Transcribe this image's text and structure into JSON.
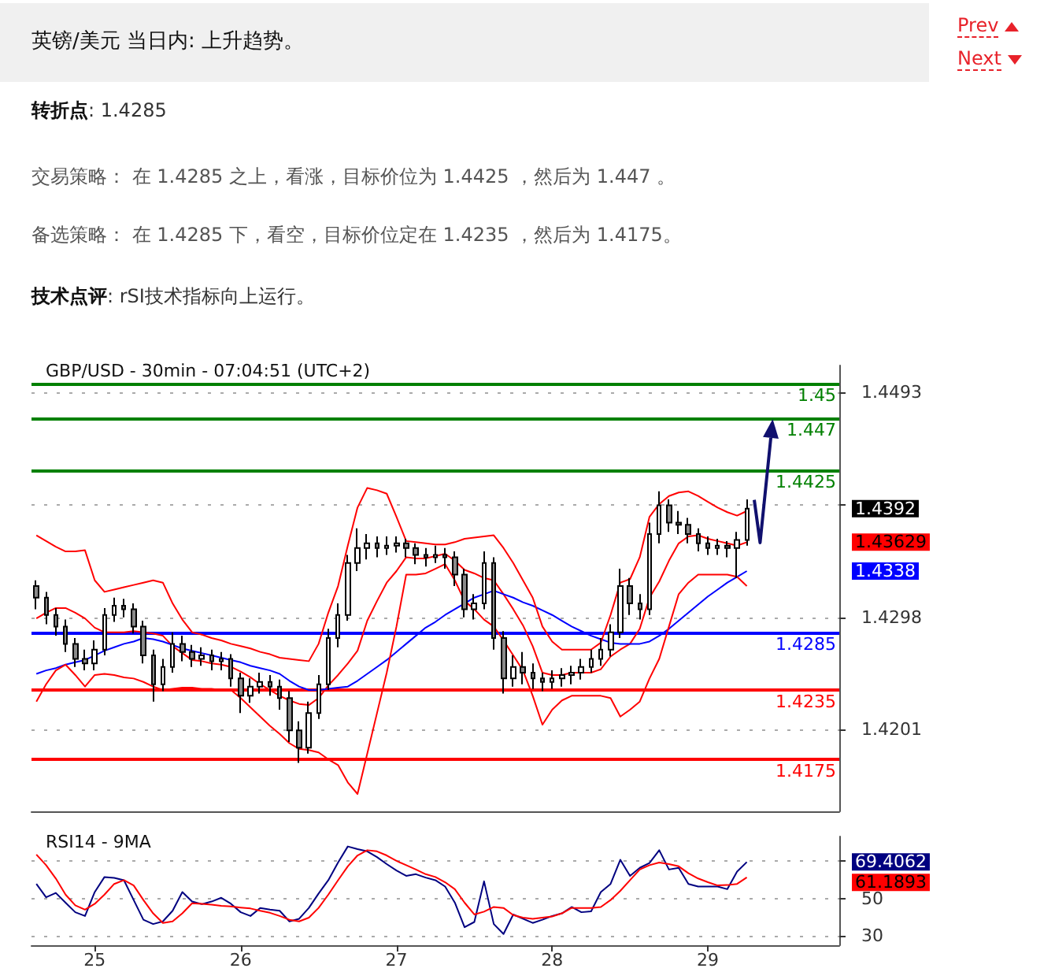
{
  "chart_data": [
    {
      "type": "candlestick",
      "title": "英镑/美元 当日内: 上升趋势。",
      "subtitle": "GBP/USD - 30min - 07:04:51 (UTC+2)",
      "annotations": [
        "Prev",
        "Next",
        "转折点: 1.4285",
        "交易策略： 在 1.4285 之上，看涨，目标价位为 1.4425 ，然后为 1.447 。",
        "备选策略： 在 1.4285 下，看空，目标价位定在 1.4235 ，然后为 1.4175。",
        "技术点评: rSI技术指标向上运行。",
        "1.4392",
        "1.43629",
        "1.4338"
      ],
      "categories": [
        null,
        null,
        null,
        null,
        null,
        null,
        "25",
        null,
        null,
        null,
        null,
        null,
        null,
        null,
        null,
        null,
        null,
        null,
        null,
        null,
        null,
        "26",
        null,
        null,
        null,
        null,
        null,
        null,
        null,
        null,
        null,
        null,
        null,
        null,
        null,
        null,
        null,
        "27",
        null,
        null,
        null,
        null,
        null,
        null,
        null,
        null,
        null,
        null,
        null,
        null,
        null,
        null,
        null,
        "28",
        null,
        null,
        null,
        null,
        null,
        null,
        null,
        null,
        null,
        null,
        null,
        null,
        null,
        null,
        null,
        "29",
        null,
        null,
        null,
        null,
        null,
        null,
        null,
        null,
        null,
        null,
        null,
        null,
        null
      ],
      "color": "#000000",
      "ohlc": [
        [
          1.4325,
          1.433,
          1.4305,
          1.4315
        ],
        [
          1.4315,
          1.432,
          1.4292,
          1.43
        ],
        [
          1.43,
          1.4306,
          1.4282,
          1.429
        ],
        [
          1.429,
          1.4296,
          1.4268,
          1.4275
        ],
        [
          1.4275,
          1.428,
          1.4255,
          1.4262
        ],
        [
          1.4262,
          1.427,
          1.4252,
          1.4258
        ],
        [
          1.4258,
          1.4278,
          1.4252,
          1.427
        ],
        [
          1.427,
          1.4306,
          1.4265,
          1.43
        ],
        [
          1.43,
          1.4315,
          1.4294,
          1.4308
        ],
        [
          1.4308,
          1.4314,
          1.4298,
          1.4305
        ],
        [
          1.4305,
          1.431,
          1.4284,
          1.429
        ],
        [
          1.429,
          1.4295,
          1.4258,
          1.4265
        ],
        [
          1.4265,
          1.427,
          1.4225,
          1.424
        ],
        [
          1.424,
          1.4262,
          1.4234,
          1.4255
        ],
        [
          1.4255,
          1.4285,
          1.425,
          1.4275
        ],
        [
          1.4275,
          1.4282,
          1.426,
          1.4268
        ],
        [
          1.4268,
          1.4274,
          1.4255,
          1.4262
        ],
        [
          1.4262,
          1.4272,
          1.4256,
          1.4265
        ],
        [
          1.4265,
          1.427,
          1.4252,
          1.426
        ],
        [
          1.426,
          1.4268,
          1.4252,
          1.4262
        ],
        [
          1.4262,
          1.4266,
          1.4238,
          1.4245
        ],
        [
          1.4245,
          1.425,
          1.4215,
          1.423
        ],
        [
          1.423,
          1.4245,
          1.4224,
          1.4238
        ],
        [
          1.4238,
          1.425,
          1.4232,
          1.4242
        ],
        [
          1.4242,
          1.4248,
          1.423,
          1.4238
        ],
        [
          1.4238,
          1.4244,
          1.4218,
          1.4228
        ],
        [
          1.4228,
          1.4234,
          1.419,
          1.42
        ],
        [
          1.42,
          1.4208,
          1.4172,
          1.4185
        ],
        [
          1.4185,
          1.4225,
          1.418,
          1.4215
        ],
        [
          1.4215,
          1.4248,
          1.421,
          1.424
        ],
        [
          1.424,
          1.4288,
          1.4235,
          1.428
        ],
        [
          1.428,
          1.431,
          1.4272,
          1.43
        ],
        [
          1.43,
          1.4352,
          1.4295,
          1.4345
        ],
        [
          1.4345,
          1.4375,
          1.4338,
          1.4358
        ],
        [
          1.4358,
          1.437,
          1.4348,
          1.4362
        ],
        [
          1.4362,
          1.4368,
          1.435,
          1.4358
        ],
        [
          1.4358,
          1.4368,
          1.4352,
          1.436
        ],
        [
          1.436,
          1.4368,
          1.4354,
          1.4362
        ],
        [
          1.4362,
          1.4366,
          1.435,
          1.4358
        ],
        [
          1.4358,
          1.4362,
          1.4344,
          1.4352
        ],
        [
          1.4352,
          1.4358,
          1.4342,
          1.435
        ],
        [
          1.435,
          1.436,
          1.4345,
          1.4352
        ],
        [
          1.4352,
          1.4358,
          1.434,
          1.435
        ],
        [
          1.435,
          1.4355,
          1.4325,
          1.4335
        ],
        [
          1.4335,
          1.434,
          1.4298,
          1.4305
        ],
        [
          1.4305,
          1.4318,
          1.4296,
          1.431
        ],
        [
          1.431,
          1.4355,
          1.4305,
          1.4345
        ],
        [
          1.4345,
          1.435,
          1.427,
          1.428
        ],
        [
          1.428,
          1.4286,
          1.4232,
          1.4245
        ],
        [
          1.4245,
          1.4265,
          1.4238,
          1.4255
        ],
        [
          1.4255,
          1.4268,
          1.424,
          1.425
        ],
        [
          1.425,
          1.4258,
          1.4236,
          1.4245
        ],
        [
          1.4245,
          1.425,
          1.4234,
          1.4242
        ],
        [
          1.4242,
          1.4252,
          1.4236,
          1.4245
        ],
        [
          1.4245,
          1.4254,
          1.4238,
          1.4248
        ],
        [
          1.4248,
          1.4256,
          1.424,
          1.425
        ],
        [
          1.425,
          1.4262,
          1.4244,
          1.4255
        ],
        [
          1.4255,
          1.427,
          1.425,
          1.4262
        ],
        [
          1.4262,
          1.428,
          1.4256,
          1.427
        ],
        [
          1.427,
          1.4292,
          1.4264,
          1.4285
        ],
        [
          1.4285,
          1.434,
          1.428,
          1.4325
        ],
        [
          1.4325,
          1.4332,
          1.43,
          1.431
        ],
        [
          1.431,
          1.4318,
          1.4296,
          1.4305
        ],
        [
          1.4305,
          1.438,
          1.43,
          1.437
        ],
        [
          1.437,
          1.4407,
          1.4362,
          1.4395
        ],
        [
          1.4395,
          1.44,
          1.4372,
          1.438
        ],
        [
          1.438,
          1.439,
          1.437,
          1.4378
        ],
        [
          1.4378,
          1.4384,
          1.4362,
          1.437
        ],
        [
          1.437,
          1.4375,
          1.4355,
          1.4362
        ],
        [
          1.4362,
          1.4368,
          1.4352,
          1.4358
        ],
        [
          1.4358,
          1.4366,
          1.4352,
          1.436
        ],
        [
          1.436,
          1.4364,
          1.435,
          1.4358
        ],
        [
          1.4358,
          1.4372,
          1.4332,
          1.4365
        ],
        [
          1.4365,
          1.44,
          1.436,
          1.4392
        ],
        null,
        null,
        null,
        null,
        null,
        null,
        null,
        null,
        null
      ],
      "series": [
        {
          "type": "line",
          "color": "#ff0000",
          "values": [
            1.4297,
            1.4302,
            1.4306,
            1.4306,
            1.4302,
            1.4297,
            1.4289,
            1.4285,
            1.4285,
            1.4285,
            1.4286,
            1.4285,
            1.4284,
            1.4282,
            1.4273,
            1.4267,
            1.4261,
            1.426,
            1.4258,
            1.4257,
            1.4255,
            1.4251,
            1.4246,
            1.424,
            1.4235,
            1.423,
            1.4226,
            1.4223,
            1.4222,
            1.4228,
            1.4239,
            1.4248,
            1.4258,
            1.4269,
            1.4295,
            1.4312,
            1.4328,
            1.4338,
            1.435,
            1.4349,
            1.4349,
            1.4351,
            1.4353,
            1.4347,
            1.4339,
            1.4336,
            1.4332,
            1.433,
            1.4318,
            1.4305,
            1.4291,
            1.4273,
            1.425,
            1.4248,
            1.4248,
            1.425,
            1.425,
            1.425,
            1.4253,
            1.4264,
            1.427,
            1.4275,
            1.4288,
            1.4315,
            1.4329,
            1.4347,
            1.4362,
            1.4368,
            1.4369,
            1.4366,
            1.4364,
            1.4362,
            1.436,
            1.4363,
            null,
            null,
            null,
            null,
            null,
            null,
            null,
            null,
            null
          ]
        },
        {
          "type": "line",
          "color": "#0000ff",
          "values": [
            1.4249,
            1.4252,
            1.4254,
            1.4257,
            1.4259,
            1.4261,
            1.4265,
            1.4269,
            1.4272,
            1.4275,
            1.4277,
            1.428,
            1.4279,
            1.4277,
            1.4274,
            1.4271,
            1.4269,
            1.4267,
            1.4265,
            1.4263,
            1.4261,
            1.4259,
            1.4256,
            1.4254,
            1.4252,
            1.4249,
            1.4243,
            1.4238,
            1.4235,
            1.4235,
            1.4236,
            1.4237,
            1.4238,
            1.4243,
            1.4249,
            1.4255,
            1.4261,
            1.4268,
            1.4275,
            1.4282,
            1.4289,
            1.4294,
            1.43,
            1.4305,
            1.431,
            1.4315,
            1.4318,
            1.4321,
            1.4318,
            1.4315,
            1.4311,
            1.4308,
            1.4304,
            1.43,
            1.4295,
            1.429,
            1.4286,
            1.4282,
            1.4279,
            1.4276,
            1.4275,
            1.4275,
            1.4275,
            1.4277,
            1.4282,
            1.4288,
            1.4295,
            1.4302,
            1.4309,
            1.4316,
            1.4322,
            1.4328,
            1.4333,
            1.4338,
            null,
            null,
            null,
            null,
            null,
            null,
            null,
            null,
            null
          ]
        },
        {
          "type": "line",
          "color": "#ff0000",
          "values": [
            1.4369,
            1.4364,
            1.4359,
            1.4355,
            1.4355,
            1.4356,
            1.433,
            1.432,
            1.4322,
            1.4324,
            1.4326,
            1.4328,
            1.433,
            1.4328,
            1.431,
            1.4296,
            1.4285,
            1.4283,
            1.428,
            1.4278,
            1.4275,
            1.4273,
            1.4271,
            1.4268,
            1.4266,
            1.4263,
            1.4262,
            1.4261,
            1.426,
            1.4275,
            1.4302,
            1.4325,
            1.436,
            1.4393,
            1.441,
            1.4408,
            1.4405,
            1.4385,
            1.4364,
            1.4363,
            1.4362,
            1.4361,
            1.4361,
            1.4363,
            1.4366,
            1.4367,
            1.4368,
            1.4369,
            1.4358,
            1.4345,
            1.433,
            1.4315,
            1.429,
            1.4277,
            1.427,
            1.427,
            1.427,
            1.427,
            1.4276,
            1.43,
            1.4328,
            1.4331,
            1.435,
            1.4385,
            1.4396,
            1.4403,
            1.4406,
            1.4407,
            1.4403,
            1.4398,
            1.4393,
            1.4389,
            1.4386,
            1.439,
            null,
            null,
            null,
            null,
            null,
            null,
            null,
            null,
            null
          ]
        },
        {
          "type": "line",
          "color": "#ff0000",
          "values": [
            1.4225,
            1.424,
            1.4252,
            1.4257,
            1.4248,
            1.4238,
            1.4248,
            1.4249,
            1.4248,
            1.4246,
            1.4245,
            1.4242,
            1.4238,
            1.4235,
            1.4236,
            1.4237,
            1.4237,
            1.4236,
            1.4236,
            1.4235,
            1.4235,
            1.4228,
            1.422,
            1.4212,
            1.4204,
            1.4197,
            1.4189,
            1.4184,
            1.4183,
            1.4181,
            1.4175,
            1.417,
            1.4155,
            1.4145,
            1.418,
            1.4215,
            1.425,
            1.429,
            1.4335,
            1.4335,
            1.4336,
            1.434,
            1.4344,
            1.433,
            1.4312,
            1.4305,
            1.4296,
            1.429,
            1.4278,
            1.4265,
            1.4252,
            1.423,
            1.4205,
            1.4218,
            1.4226,
            1.423,
            1.423,
            1.423,
            1.423,
            1.4228,
            1.4212,
            1.4218,
            1.4225,
            1.4245,
            1.4262,
            1.429,
            1.4318,
            1.4328,
            1.4335,
            1.4335,
            1.4335,
            1.4335,
            1.4333,
            1.4325,
            null,
            null,
            null,
            null,
            null,
            null,
            null,
            null,
            null
          ]
        }
      ],
      "ylim": [
        1.413,
        1.4516
      ],
      "yticks": [
        1.4201,
        1.4298,
        {
          "value": 1.4396,
          "label": null
        },
        1.4493
      ],
      "grid": "y",
      "tick_labels": "y",
      "ref_lines": [
        {
          "axis": "y",
          "value": 1.45,
          "label": "1.45",
          "color": "#008000"
        },
        {
          "axis": "y",
          "value": 1.447,
          "label": "1.447",
          "color": "#008000"
        },
        {
          "axis": "y",
          "value": 1.4425,
          "label": "1.4425",
          "color": "#008000"
        },
        {
          "axis": "y",
          "value": 1.4285,
          "label": "1.4285",
          "color": "#0000ff"
        },
        {
          "axis": "y",
          "value": 1.4235,
          "label": "1.4235",
          "color": "#ff0000"
        },
        {
          "axis": "y",
          "value": 1.4175,
          "label": "1.4175",
          "color": "#ff0000"
        }
      ]
    },
    {
      "type": "line",
      "title": "RSI14 - 9MA",
      "categories": [
        null,
        null,
        null,
        null,
        null,
        null,
        "25",
        null,
        null,
        null,
        null,
        null,
        null,
        null,
        null,
        null,
        null,
        null,
        null,
        null,
        null,
        "26",
        null,
        null,
        null,
        null,
        null,
        null,
        null,
        null,
        null,
        null,
        null,
        null,
        null,
        null,
        null,
        "27",
        null,
        null,
        null,
        null,
        null,
        null,
        null,
        null,
        null,
        null,
        null,
        null,
        null,
        null,
        null,
        "28",
        null,
        null,
        null,
        null,
        null,
        null,
        null,
        null,
        null,
        null,
        null,
        null,
        null,
        null,
        null,
        "29",
        null,
        null,
        null,
        null,
        null,
        null,
        null,
        null,
        null,
        null,
        null,
        null,
        null
      ],
      "series": [
        {
          "color": "#000080",
          "values": [
            57.7,
            50.6,
            52.9,
            47.7,
            42.6,
            40.6,
            53.4,
            61.4,
            60.9,
            59.7,
            49.1,
            38.6,
            36.3,
            37.7,
            43.4,
            53.4,
            48.3,
            46.9,
            48.3,
            50.3,
            47.1,
            42.6,
            40.6,
            44.9,
            44.0,
            43.4,
            37.7,
            39.1,
            44.9,
            52.6,
            59.7,
            69.1,
            77.7,
            76.3,
            75.1,
            72.0,
            68.3,
            64.9,
            62.0,
            62.9,
            61.1,
            59.7,
            56.3,
            47.7,
            34.6,
            37.4,
            59.1,
            36.3,
            31.0,
            41.4,
            39.1,
            36.9,
            38.6,
            40.6,
            42.0,
            45.4,
            42.6,
            43.1,
            53.4,
            57.7,
            70.6,
            62.0,
            66.3,
            68.9,
            75.7,
            65.4,
            66.3,
            57.7,
            56.3,
            56.3,
            56.3,
            54.9,
            64.3,
            69.4,
            null,
            null,
            null,
            null,
            null,
            null,
            null,
            null,
            null
          ]
        },
        {
          "color": "#ff0000",
          "values": [
            73.4,
            67.7,
            60.6,
            52.0,
            46.3,
            44.0,
            47.1,
            52.0,
            57.7,
            59.7,
            56.9,
            49.1,
            42.0,
            36.9,
            37.7,
            42.0,
            47.4,
            47.1,
            46.6,
            46.0,
            45.7,
            45.1,
            44.6,
            43.4,
            42.3,
            40.6,
            38.6,
            37.7,
            39.7,
            44.9,
            52.0,
            59.7,
            67.1,
            72.9,
            75.7,
            75.1,
            72.9,
            70.0,
            67.7,
            65.4,
            62.9,
            61.4,
            58.6,
            54.9,
            47.7,
            41.4,
            42.9,
            45.4,
            44.9,
            41.1,
            39.7,
            39.1,
            39.7,
            40.3,
            42.0,
            44.9,
            44.9,
            44.9,
            45.4,
            49.1,
            54.0,
            59.7,
            65.4,
            67.7,
            69.1,
            68.3,
            67.1,
            63.4,
            60.6,
            58.6,
            56.9,
            57.1,
            57.7,
            61.2,
            null,
            null,
            null,
            null,
            null,
            null,
            null,
            null,
            null
          ]
        }
      ],
      "annotations": [
        "69.4062",
        "61.1893"
      ],
      "ylim": [
        25,
        83
      ],
      "yticks": [
        30,
        50,
        {
          "value": 70,
          "label": null
        }
      ],
      "grid": "y"
    }
  ]
}
